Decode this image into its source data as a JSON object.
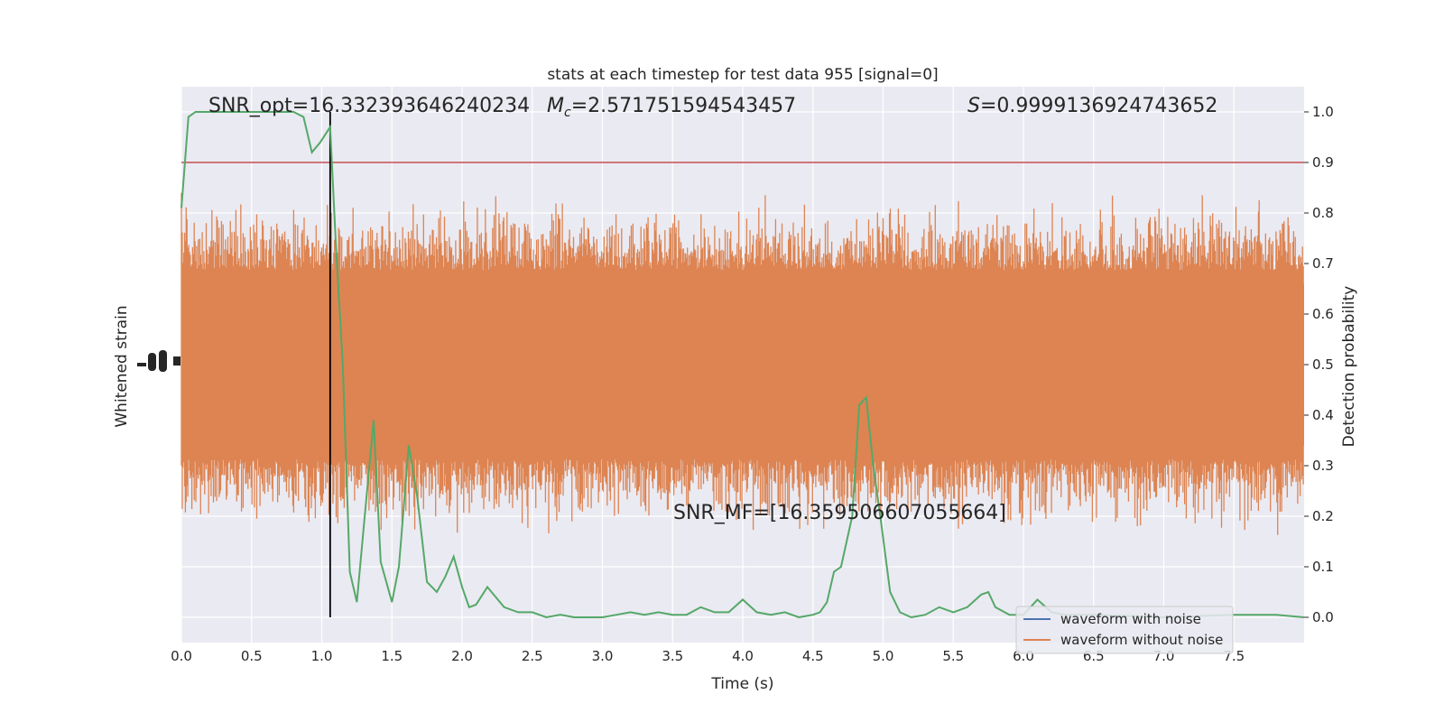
{
  "chart_data": {
    "type": "line",
    "title": "stats at each timestep for test data 955 [signal=0]",
    "xlabel": "Time (s)",
    "ylabel_left": "Whitened strain",
    "ylabel_right": "Detection probability",
    "xlim": [
      0.0,
      8.0
    ],
    "ylim_right": [
      -0.05,
      1.05
    ],
    "x_ticks": [
      "0.0",
      "0.5",
      "1.0",
      "1.5",
      "2.0",
      "2.5",
      "3.0",
      "3.5",
      "4.0",
      "4.5",
      "5.0",
      "5.5",
      "6.0",
      "6.5",
      "7.0",
      "7.5"
    ],
    "y_ticks_right": [
      "0.0",
      "0.1",
      "0.2",
      "0.3",
      "0.4",
      "0.5",
      "0.6",
      "0.7",
      "0.8",
      "0.9",
      "1.0"
    ],
    "grid": true,
    "legend_placement": "lower-right",
    "colors": {
      "background": "#EAEAF2",
      "noise_waveform": "#4C72B0",
      "clean_waveform": "#DD8452",
      "probability": "#55A868",
      "threshold": "#C44E52",
      "marker": "#000000"
    },
    "annotations": {
      "snr_opt": "SNR_opt=16.332393646240234",
      "mc_symbol": "M",
      "mc_sub": "c",
      "mc_value": "=2.571751594543457",
      "s_symbol": "S",
      "s_value": "=0.9999136924743652",
      "snr_mf": "SNR_MF=[16.359506607055664]"
    },
    "threshold": 0.9,
    "marker_time": 1.06,
    "series": [
      {
        "name": "waveform with noise",
        "color": "#4C72B0",
        "values": []
      },
      {
        "name": "waveform without noise",
        "color": "#DD8452",
        "center": 0.5,
        "typical_halfwidth": 0.22,
        "max_extent": [
          0.02,
          1.0
        ]
      },
      {
        "color": "#55A868",
        "x": [
          0.0,
          0.05,
          0.1,
          0.15,
          0.2,
          0.3,
          0.4,
          0.5,
          0.6,
          0.7,
          0.8,
          0.87,
          0.93,
          0.99,
          1.06,
          1.1,
          1.15,
          1.2,
          1.25,
          1.3,
          1.37,
          1.42,
          1.5,
          1.55,
          1.62,
          1.68,
          1.75,
          1.82,
          1.88,
          1.94,
          2.0,
          2.05,
          2.1,
          2.18,
          2.3,
          2.4,
          2.5,
          2.6,
          2.7,
          2.8,
          2.9,
          3.0,
          3.1,
          3.2,
          3.3,
          3.4,
          3.5,
          3.6,
          3.7,
          3.8,
          3.9,
          4.0,
          4.1,
          4.2,
          4.3,
          4.4,
          4.5,
          4.55,
          4.6,
          4.65,
          4.7,
          4.78,
          4.83,
          4.88,
          4.93,
          4.98,
          5.05,
          5.12,
          5.2,
          5.3,
          5.4,
          5.5,
          5.6,
          5.7,
          5.75,
          5.8,
          5.9,
          6.0,
          6.05,
          6.1,
          6.2,
          6.3,
          6.5,
          7.0,
          7.5,
          7.8,
          8.0
        ],
        "values": [
          0.81,
          0.99,
          1.0,
          1.0,
          1.0,
          1.0,
          1.0,
          1.0,
          1.0,
          1.0,
          1.0,
          0.99,
          0.92,
          0.94,
          0.97,
          0.74,
          0.5,
          0.09,
          0.03,
          0.18,
          0.39,
          0.11,
          0.03,
          0.1,
          0.34,
          0.24,
          0.07,
          0.05,
          0.08,
          0.12,
          0.06,
          0.02,
          0.025,
          0.06,
          0.02,
          0.01,
          0.01,
          0.0,
          0.005,
          0.0,
          0.0,
          0.0,
          0.005,
          0.01,
          0.005,
          0.01,
          0.005,
          0.005,
          0.02,
          0.01,
          0.01,
          0.035,
          0.01,
          0.005,
          0.01,
          0.0,
          0.005,
          0.01,
          0.03,
          0.09,
          0.1,
          0.2,
          0.42,
          0.435,
          0.3,
          0.2,
          0.05,
          0.01,
          0.0,
          0.005,
          0.02,
          0.01,
          0.02,
          0.045,
          0.05,
          0.02,
          0.005,
          0.005,
          0.02,
          0.035,
          0.01,
          0.005,
          0.005,
          0.0,
          0.005,
          0.005,
          0.0
        ]
      }
    ]
  }
}
